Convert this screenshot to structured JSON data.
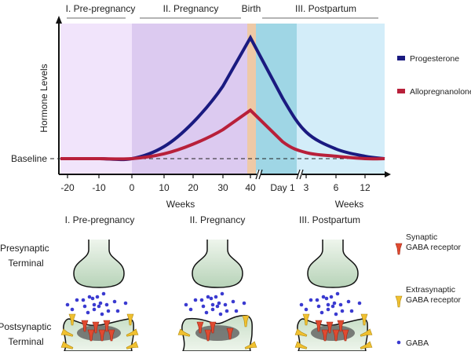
{
  "chart_data": {
    "type": "line",
    "ylabel": "Hormone Levels",
    "baseline_label": "Baseline",
    "phase_headers": [
      "I. Pre-pregnancy",
      "II. Pregnancy",
      "Birth",
      "III. Postpartum"
    ],
    "x_tick_labels": [
      "-20",
      "-10",
      "0",
      "10",
      "20",
      "30",
      "40",
      "Day 1",
      "3",
      "6",
      "12"
    ],
    "x_unit_labels": [
      "Weeks",
      "Weeks"
    ],
    "series": [
      {
        "name": "Progesterone",
        "color": "#1a1a80",
        "values": [
          0,
          0,
          0,
          0.1,
          0.3,
          0.6,
          1.0,
          0.5,
          0.22,
          0.08,
          0.02
        ]
      },
      {
        "name": "Allopregnanolone",
        "color": "#b8203a",
        "values": [
          0,
          0,
          0,
          0.04,
          0.12,
          0.24,
          0.4,
          0.14,
          0.05,
          0.02,
          0.0
        ]
      }
    ],
    "region_colors": {
      "pre_pregnancy": "#f1e4fb",
      "pregnancy": "#dccaf0",
      "birth": "#eec9a6",
      "day1": "#9fd6e5",
      "postpartum": "#d3edf9"
    },
    "grid": false,
    "legend": "right"
  },
  "diagram": {
    "panels": [
      "I. Pre-pregnancy",
      "II. Pregnancy",
      "III. Postpartum"
    ],
    "presynaptic_label": [
      "Presynaptic",
      "Terminal"
    ],
    "postsynaptic_label": [
      "Postsynaptic",
      "Terminal"
    ],
    "legend": [
      {
        "label": [
          "Synaptic",
          "GABA receptor"
        ],
        "color": "#e04a30"
      },
      {
        "label": [
          "Extrasynaptic",
          "GABA receptor"
        ],
        "color": "#f0c030"
      },
      {
        "label": [
          "GABA"
        ],
        "color": "#3a3ad0"
      }
    ]
  }
}
